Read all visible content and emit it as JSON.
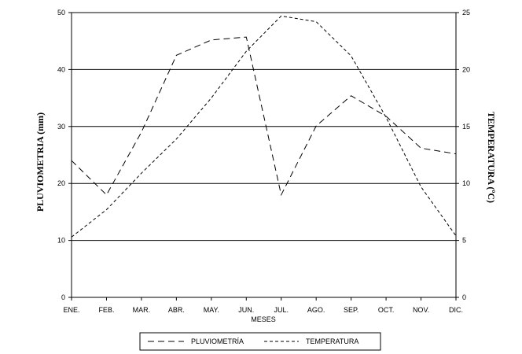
{
  "chart_data": {
    "type": "line",
    "title": "",
    "xlabel": "MESES",
    "ylabel": "PLUVIOMETRIA (mm)",
    "y2label": "TEMPERATURA (ºC)",
    "categories": [
      "ENE.",
      "FEB.",
      "MAR.",
      "ABR.",
      "MAY.",
      "JUN.",
      "JUL.",
      "AGO.",
      "SEP.",
      "OCT.",
      "NOV.",
      "DIC."
    ],
    "ylim": [
      0,
      50
    ],
    "y2lim": [
      0,
      25
    ],
    "yticks": [
      "0",
      "10",
      "20",
      "30",
      "40",
      "50"
    ],
    "y2ticks": [
      "0",
      "5",
      "10",
      "15",
      "20",
      "25"
    ],
    "grid": true,
    "legend_position": "bottom",
    "series": [
      {
        "name": "PLUVIOMETRÍA",
        "axis": "left",
        "dash": "long",
        "values": [
          24,
          18,
          29,
          42.5,
          45.2,
          45.7,
          18,
          30.1,
          35.4,
          31.8,
          26.2,
          25.2
        ]
      },
      {
        "name": "TEMPERATURA",
        "axis": "right",
        "dash": "short",
        "values": [
          5.3,
          7.7,
          10.9,
          13.9,
          17.5,
          21.6,
          24.7,
          24.2,
          21.2,
          15.8,
          9.7,
          5.4
        ]
      }
    ]
  }
}
